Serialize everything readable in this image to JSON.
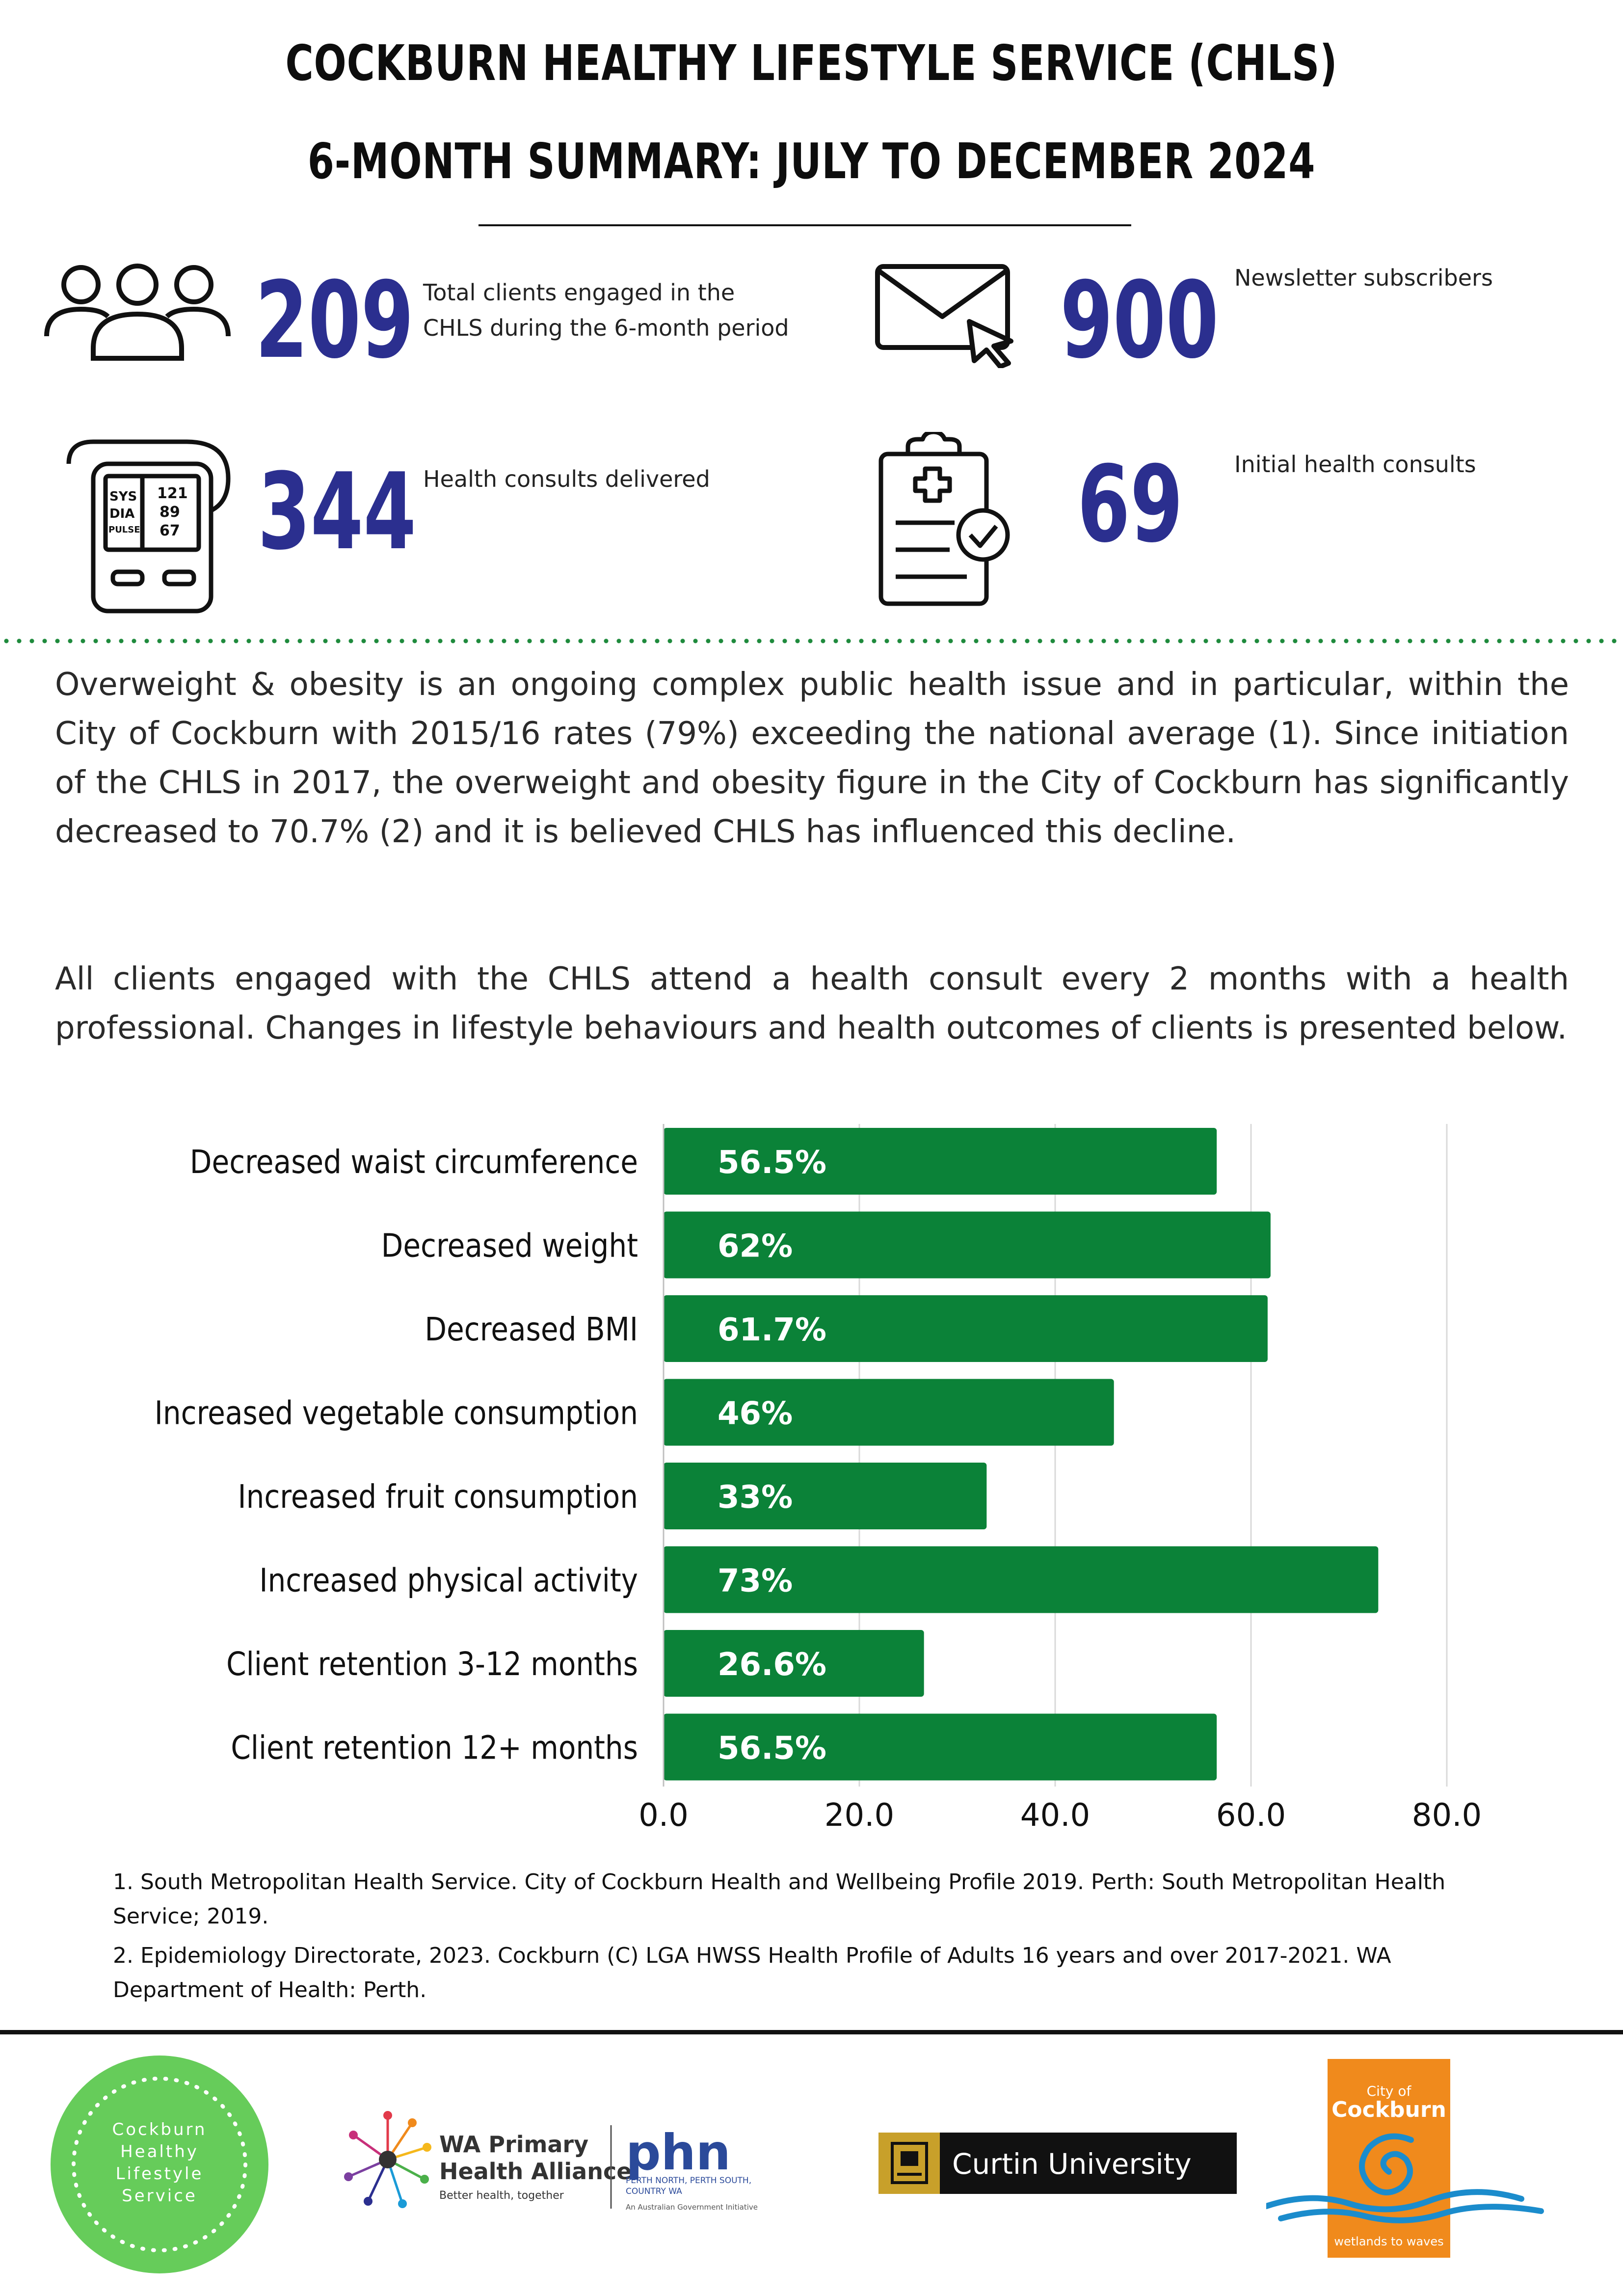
{
  "header": {
    "title_line1": "COCKBURN HEALTHY LIFESTYLE SERVICE (CHLS)",
    "title_line2": "6-MONTH SUMMARY: JULY TO DECEMBER 2024"
  },
  "stats": [
    {
      "value": "209",
      "label_line1": "Total clients engaged in the",
      "label_line2": "CHLS during the 6-month period",
      "icon": "people-icon"
    },
    {
      "value": "900",
      "label_line1": "Newsletter subscribers",
      "label_line2": "",
      "icon": "envelope-icon"
    },
    {
      "value": "344",
      "label_line1": "Health consults delivered",
      "label_line2": "",
      "icon": "blood-pressure-monitor-icon"
    },
    {
      "value": "69",
      "label_line1": "Initial health consults",
      "label_line2": "",
      "icon": "clipboard-check-icon"
    }
  ],
  "bp_monitor": {
    "sys": "SYS",
    "dia": "DIA",
    "pulse": "PULSE",
    "sys_val": "121",
    "dia_val": "89",
    "pulse_val": "67"
  },
  "intro": {
    "paragraph1": "Overweight & obesity is an ongoing complex public health issue and in particular, within the City of Cockburn with 2015/16 rates (79%) exceeding the national average (1). Since initiation of the CHLS in 2017, the overweight and obesity figure in the City of Cockburn has significantly decreased to 70.7% (2) and it is believed CHLS has influenced this decline.",
    "paragraph2": "All clients engaged with the CHLS attend a health consult every 2 months with a health professional. Changes in lifestyle behaviours and health outcomes of clients is presented below."
  },
  "chart_data": {
    "type": "bar",
    "orientation": "horizontal",
    "categories": [
      "Decreased waist circumference",
      "Decreased weight",
      "Decreased BMI",
      "Increased vegetable consumption",
      "Increased fruit consumption",
      "Increased physical activity",
      "Client retention 3-12 months",
      "Client retention 12+ months"
    ],
    "values": [
      56.5,
      62,
      61.7,
      46,
      33,
      73,
      26.6,
      56.5
    ],
    "data_labels": [
      "56.5%",
      "62%",
      "61.7%",
      "46%",
      "33%",
      "73%",
      "26.6%",
      "56.5%"
    ],
    "xlim": [
      0,
      80
    ],
    "xticks": [
      "0.0",
      "20.0",
      "40.0",
      "60.0",
      "80.0"
    ],
    "grid": true,
    "bar_color": "#0b8238",
    "title": "",
    "xlabel": "",
    "ylabel": ""
  },
  "references": {
    "ref1": "1. South Metropolitan Health Service. City of Cockburn Health and Wellbeing Profile 2019. Perth: South Metropolitan Health Service; 2019.",
    "ref2": "2. Epidemiology Directorate, 2023. Cockburn (C) LGA HWSS Health Profile of Adults 16 years and over 2017-2021. WA Department of Health: Perth."
  },
  "logos": {
    "chls": [
      "Cockburn",
      "Healthy",
      "Lifestyle",
      "Service"
    ],
    "wapha_line1": "WA Primary",
    "wapha_line2": "Health Alliance",
    "wapha_tag": "Better health, together",
    "phn": "phn",
    "phn_sub1": "PERTH NORTH, PERTH SOUTH,",
    "phn_sub2": "COUNTRY WA",
    "phn_sub3": "An Australian Government Initiative",
    "curtin": "Curtin University",
    "cockburn_top": "City of",
    "cockburn_name": "Cockburn",
    "cockburn_tag": "wetlands to waves"
  },
  "colors": {
    "navy": "#2b2f8f",
    "green": "#0b8238",
    "light_green": "#66cc5a",
    "orange": "#f08a1c",
    "curtin_gold": "#c8a02a"
  }
}
